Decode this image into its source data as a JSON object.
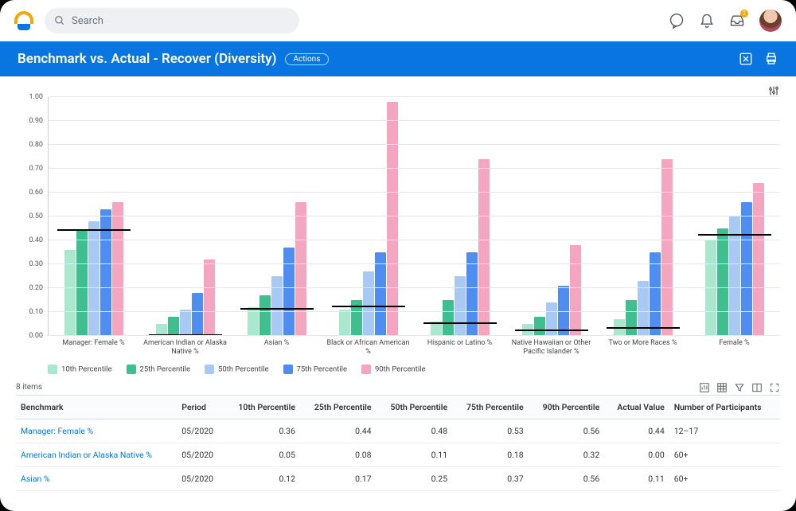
{
  "header": {
    "search_placeholder": "Search",
    "notification_count": "2"
  },
  "titlebar": {
    "title": "Benchmark vs. Actual - Recover (Diversity)",
    "actions_label": "Actions"
  },
  "chart": {
    "type": "grouped-bar",
    "ylim": [
      0,
      1.0
    ],
    "ytick_step": 0.1,
    "yticks": [
      "0.00",
      "0.10",
      "0.20",
      "0.30",
      "0.40",
      "0.50",
      "0.60",
      "0.70",
      "0.80",
      "0.90",
      "1.00"
    ],
    "grid_color": "#e5e7eb",
    "series": [
      {
        "key": "p10",
        "label": "10th Percentile",
        "color": "#a9e7cf"
      },
      {
        "key": "p25",
        "label": "25th Percentile",
        "color": "#3fbf8f"
      },
      {
        "key": "p50",
        "label": "50th Percentile",
        "color": "#a9c9f5"
      },
      {
        "key": "p75",
        "label": "75th Percentile",
        "color": "#4f8ef0"
      },
      {
        "key": "p90",
        "label": "90th Percentile",
        "color": "#f4a6c0"
      }
    ],
    "actual_line_color": "#000000",
    "groups": [
      {
        "label": "Manager: Female %",
        "p10": 0.36,
        "p25": 0.44,
        "p50": 0.48,
        "p75": 0.53,
        "p90": 0.56,
        "actual": 0.44
      },
      {
        "label": "American Indian or Alaska Native %",
        "p10": 0.05,
        "p25": 0.08,
        "p50": 0.11,
        "p75": 0.18,
        "p90": 0.32,
        "actual": 0.0
      },
      {
        "label": "Asian %",
        "p10": 0.12,
        "p25": 0.17,
        "p50": 0.25,
        "p75": 0.37,
        "p90": 0.56,
        "actual": 0.11
      },
      {
        "label": "Black or African American %",
        "p10": 0.11,
        "p25": 0.15,
        "p50": 0.27,
        "p75": 0.35,
        "p90": 0.98,
        "actual": 0.12
      },
      {
        "label": "Hispanic or Latino %",
        "p10": 0.06,
        "p25": 0.15,
        "p50": 0.25,
        "p75": 0.35,
        "p90": 0.74,
        "actual": 0.05
      },
      {
        "label": "Native Hawaiian or Other Pacific Islander %",
        "p10": 0.05,
        "p25": 0.08,
        "p50": 0.14,
        "p75": 0.21,
        "p90": 0.38,
        "actual": 0.02
      },
      {
        "label": "Two or More Races %",
        "p10": 0.07,
        "p25": 0.15,
        "p50": 0.23,
        "p75": 0.35,
        "p90": 0.74,
        "actual": 0.03
      },
      {
        "label": "Female %",
        "p10": 0.4,
        "p25": 0.45,
        "p50": 0.5,
        "p75": 0.56,
        "p90": 0.64,
        "actual": 0.42
      }
    ]
  },
  "table": {
    "item_count_label": "8 items",
    "columns": [
      "Benchmark",
      "Period",
      "10th Percentile",
      "25th Percentile",
      "50th Percentile",
      "75th Percentile",
      "90th Percentile",
      "Actual Value",
      "Number of Participants"
    ],
    "rows": [
      {
        "benchmark": "Manager: Female %",
        "period": "05/2020",
        "p10": "0.36",
        "p25": "0.44",
        "p50": "0.48",
        "p75": "0.53",
        "p90": "0.56",
        "actual": "0.44",
        "participants": "12–17"
      },
      {
        "benchmark": "American Indian or Alaska Native %",
        "period": "05/2020",
        "p10": "0.05",
        "p25": "0.08",
        "p50": "0.11",
        "p75": "0.18",
        "p90": "0.32",
        "actual": "0.00",
        "participants": "60+"
      },
      {
        "benchmark": "Asian %",
        "period": "05/2020",
        "p10": "0.12",
        "p25": "0.17",
        "p50": "0.25",
        "p75": "0.37",
        "p90": "0.56",
        "actual": "0.11",
        "participants": "60+"
      }
    ]
  }
}
